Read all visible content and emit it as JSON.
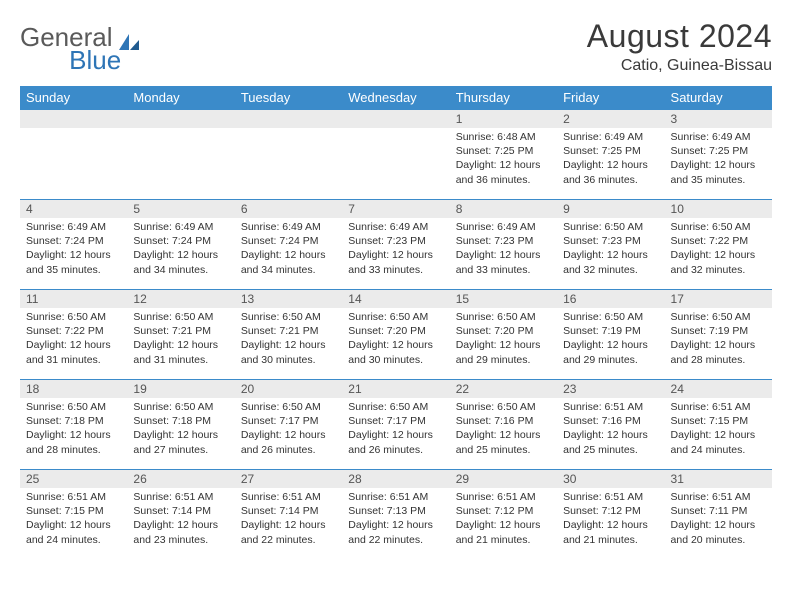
{
  "logo": {
    "text1": "General",
    "text2": "Blue"
  },
  "title": "August 2024",
  "location": "Catio, Guinea-Bissau",
  "colors": {
    "header_bg": "#3b8bca",
    "header_text": "#ffffff",
    "daynum_bg": "#ebebeb",
    "border": "#3b8bca",
    "logo_gray": "#5a5a5a",
    "logo_blue": "#2e75b6"
  },
  "typography": {
    "title_fontsize": 32,
    "location_fontsize": 16,
    "dayheader_fontsize": 13,
    "daynum_fontsize": 12,
    "body_fontsize": 10.5
  },
  "day_headers": [
    "Sunday",
    "Monday",
    "Tuesday",
    "Wednesday",
    "Thursday",
    "Friday",
    "Saturday"
  ],
  "weeks": [
    [
      null,
      null,
      null,
      null,
      {
        "n": "1",
        "sr": "6:48 AM",
        "ss": "7:25 PM",
        "dl": "12 hours and 36 minutes."
      },
      {
        "n": "2",
        "sr": "6:49 AM",
        "ss": "7:25 PM",
        "dl": "12 hours and 36 minutes."
      },
      {
        "n": "3",
        "sr": "6:49 AM",
        "ss": "7:25 PM",
        "dl": "12 hours and 35 minutes."
      }
    ],
    [
      {
        "n": "4",
        "sr": "6:49 AM",
        "ss": "7:24 PM",
        "dl": "12 hours and 35 minutes."
      },
      {
        "n": "5",
        "sr": "6:49 AM",
        "ss": "7:24 PM",
        "dl": "12 hours and 34 minutes."
      },
      {
        "n": "6",
        "sr": "6:49 AM",
        "ss": "7:24 PM",
        "dl": "12 hours and 34 minutes."
      },
      {
        "n": "7",
        "sr": "6:49 AM",
        "ss": "7:23 PM",
        "dl": "12 hours and 33 minutes."
      },
      {
        "n": "8",
        "sr": "6:49 AM",
        "ss": "7:23 PM",
        "dl": "12 hours and 33 minutes."
      },
      {
        "n": "9",
        "sr": "6:50 AM",
        "ss": "7:23 PM",
        "dl": "12 hours and 32 minutes."
      },
      {
        "n": "10",
        "sr": "6:50 AM",
        "ss": "7:22 PM",
        "dl": "12 hours and 32 minutes."
      }
    ],
    [
      {
        "n": "11",
        "sr": "6:50 AM",
        "ss": "7:22 PM",
        "dl": "12 hours and 31 minutes."
      },
      {
        "n": "12",
        "sr": "6:50 AM",
        "ss": "7:21 PM",
        "dl": "12 hours and 31 minutes."
      },
      {
        "n": "13",
        "sr": "6:50 AM",
        "ss": "7:21 PM",
        "dl": "12 hours and 30 minutes."
      },
      {
        "n": "14",
        "sr": "6:50 AM",
        "ss": "7:20 PM",
        "dl": "12 hours and 30 minutes."
      },
      {
        "n": "15",
        "sr": "6:50 AM",
        "ss": "7:20 PM",
        "dl": "12 hours and 29 minutes."
      },
      {
        "n": "16",
        "sr": "6:50 AM",
        "ss": "7:19 PM",
        "dl": "12 hours and 29 minutes."
      },
      {
        "n": "17",
        "sr": "6:50 AM",
        "ss": "7:19 PM",
        "dl": "12 hours and 28 minutes."
      }
    ],
    [
      {
        "n": "18",
        "sr": "6:50 AM",
        "ss": "7:18 PM",
        "dl": "12 hours and 28 minutes."
      },
      {
        "n": "19",
        "sr": "6:50 AM",
        "ss": "7:18 PM",
        "dl": "12 hours and 27 minutes."
      },
      {
        "n": "20",
        "sr": "6:50 AM",
        "ss": "7:17 PM",
        "dl": "12 hours and 26 minutes."
      },
      {
        "n": "21",
        "sr": "6:50 AM",
        "ss": "7:17 PM",
        "dl": "12 hours and 26 minutes."
      },
      {
        "n": "22",
        "sr": "6:50 AM",
        "ss": "7:16 PM",
        "dl": "12 hours and 25 minutes."
      },
      {
        "n": "23",
        "sr": "6:51 AM",
        "ss": "7:16 PM",
        "dl": "12 hours and 25 minutes."
      },
      {
        "n": "24",
        "sr": "6:51 AM",
        "ss": "7:15 PM",
        "dl": "12 hours and 24 minutes."
      }
    ],
    [
      {
        "n": "25",
        "sr": "6:51 AM",
        "ss": "7:15 PM",
        "dl": "12 hours and 24 minutes."
      },
      {
        "n": "26",
        "sr": "6:51 AM",
        "ss": "7:14 PM",
        "dl": "12 hours and 23 minutes."
      },
      {
        "n": "27",
        "sr": "6:51 AM",
        "ss": "7:14 PM",
        "dl": "12 hours and 22 minutes."
      },
      {
        "n": "28",
        "sr": "6:51 AM",
        "ss": "7:13 PM",
        "dl": "12 hours and 22 minutes."
      },
      {
        "n": "29",
        "sr": "6:51 AM",
        "ss": "7:12 PM",
        "dl": "12 hours and 21 minutes."
      },
      {
        "n": "30",
        "sr": "6:51 AM",
        "ss": "7:12 PM",
        "dl": "12 hours and 21 minutes."
      },
      {
        "n": "31",
        "sr": "6:51 AM",
        "ss": "7:11 PM",
        "dl": "12 hours and 20 minutes."
      }
    ]
  ],
  "labels": {
    "sunrise": "Sunrise:",
    "sunset": "Sunset:",
    "daylight": "Daylight:"
  }
}
